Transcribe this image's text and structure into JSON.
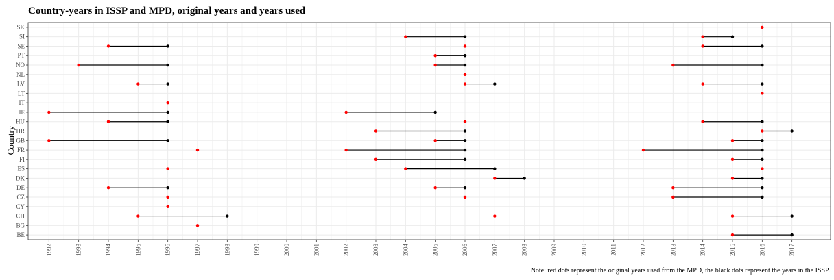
{
  "chart_data": {
    "type": "scatter",
    "title": "Country-years in ISSP and MPD, original years and years used",
    "ylabel": "Country",
    "xlabel": "",
    "note": "Note: red dots represent the original years used from the MPD, the black dots represent the years in the ISSP.",
    "x_ticks": [
      1992,
      1993,
      1994,
      1995,
      1996,
      1997,
      1998,
      1999,
      2000,
      2001,
      2002,
      2003,
      2004,
      2005,
      2006,
      2007,
      2008,
      2009,
      2010,
      2011,
      2012,
      2013,
      2014,
      2015,
      2016,
      2017
    ],
    "xlim": [
      1991.3,
      2018.3
    ],
    "countries": [
      "BE",
      "BG",
      "CH",
      "CY",
      "CZ",
      "DE",
      "DK",
      "ES",
      "FI",
      "FR",
      "GB",
      "HR",
      "HU",
      "IE",
      "IT",
      "LT",
      "LV",
      "NL",
      "NO",
      "PT",
      "SE",
      "SI",
      "SK"
    ],
    "series": [
      {
        "name": "original years used from the MPD",
        "color": "#ff0000"
      },
      {
        "name": "years in the ISSP",
        "color": "#000000"
      }
    ],
    "pairs": [
      {
        "country": "SK",
        "mpd": 2016,
        "issp": 2016
      },
      {
        "country": "SI",
        "mpd": 2004,
        "issp": 2006
      },
      {
        "country": "SI",
        "mpd": 2014,
        "issp": 2015
      },
      {
        "country": "SE",
        "mpd": 1994,
        "issp": 1996
      },
      {
        "country": "SE",
        "mpd": 2006,
        "issp": 2006
      },
      {
        "country": "SE",
        "mpd": 2014,
        "issp": 2016
      },
      {
        "country": "PT",
        "mpd": 2005,
        "issp": 2006
      },
      {
        "country": "NO",
        "mpd": 1993,
        "issp": 1996
      },
      {
        "country": "NO",
        "mpd": 2005,
        "issp": 2006
      },
      {
        "country": "NO",
        "mpd": 2013,
        "issp": 2016
      },
      {
        "country": "NL",
        "mpd": 2006,
        "issp": 2006
      },
      {
        "country": "LV",
        "mpd": 1995,
        "issp": 1996
      },
      {
        "country": "LV",
        "mpd": 2006,
        "issp": 2007
      },
      {
        "country": "LV",
        "mpd": 2014,
        "issp": 2016
      },
      {
        "country": "LT",
        "mpd": 2016,
        "issp": 2016
      },
      {
        "country": "IT",
        "mpd": 1996,
        "issp": 1996
      },
      {
        "country": "IE",
        "mpd": 1992,
        "issp": 1996
      },
      {
        "country": "IE",
        "mpd": 2002,
        "issp": 2005
      },
      {
        "country": "HU",
        "mpd": 1994,
        "issp": 1996
      },
      {
        "country": "HU",
        "mpd": 2006,
        "issp": 2006
      },
      {
        "country": "HU",
        "mpd": 2014,
        "issp": 2016
      },
      {
        "country": "HR",
        "mpd": 2003,
        "issp": 2006
      },
      {
        "country": "HR",
        "mpd": 2016,
        "issp": 2017
      },
      {
        "country": "GB",
        "mpd": 1992,
        "issp": 1996
      },
      {
        "country": "GB",
        "mpd": 2005,
        "issp": 2006
      },
      {
        "country": "GB",
        "mpd": 2015,
        "issp": 2016
      },
      {
        "country": "FR",
        "mpd": 1997,
        "issp": 1997
      },
      {
        "country": "FR",
        "mpd": 2002,
        "issp": 2006
      },
      {
        "country": "FR",
        "mpd": 2012,
        "issp": 2016
      },
      {
        "country": "FI",
        "mpd": 2003,
        "issp": 2006
      },
      {
        "country": "FI",
        "mpd": 2015,
        "issp": 2016
      },
      {
        "country": "ES",
        "mpd": 1996,
        "issp": 1996
      },
      {
        "country": "ES",
        "mpd": 2004,
        "issp": 2007
      },
      {
        "country": "ES",
        "mpd": 2016,
        "issp": 2016
      },
      {
        "country": "DK",
        "mpd": 2007,
        "issp": 2008
      },
      {
        "country": "DK",
        "mpd": 2015,
        "issp": 2016
      },
      {
        "country": "DE",
        "mpd": 1994,
        "issp": 1996
      },
      {
        "country": "DE",
        "mpd": 2005,
        "issp": 2006
      },
      {
        "country": "DE",
        "mpd": 2013,
        "issp": 2016
      },
      {
        "country": "CZ",
        "mpd": 1996,
        "issp": 1996
      },
      {
        "country": "CZ",
        "mpd": 2006,
        "issp": 2006
      },
      {
        "country": "CZ",
        "mpd": 2013,
        "issp": 2016
      },
      {
        "country": "CY",
        "mpd": 1996,
        "issp": 1996
      },
      {
        "country": "CH",
        "mpd": 1995,
        "issp": 1998
      },
      {
        "country": "CH",
        "mpd": 2007,
        "issp": 2007
      },
      {
        "country": "CH",
        "mpd": 2015,
        "issp": 2017
      },
      {
        "country": "BG",
        "mpd": 1997,
        "issp": 1997
      },
      {
        "country": "BE",
        "mpd": 2015,
        "issp": 2017
      }
    ],
    "grid": true,
    "background": "#ffffff",
    "grid_color": "#ebebeb"
  }
}
